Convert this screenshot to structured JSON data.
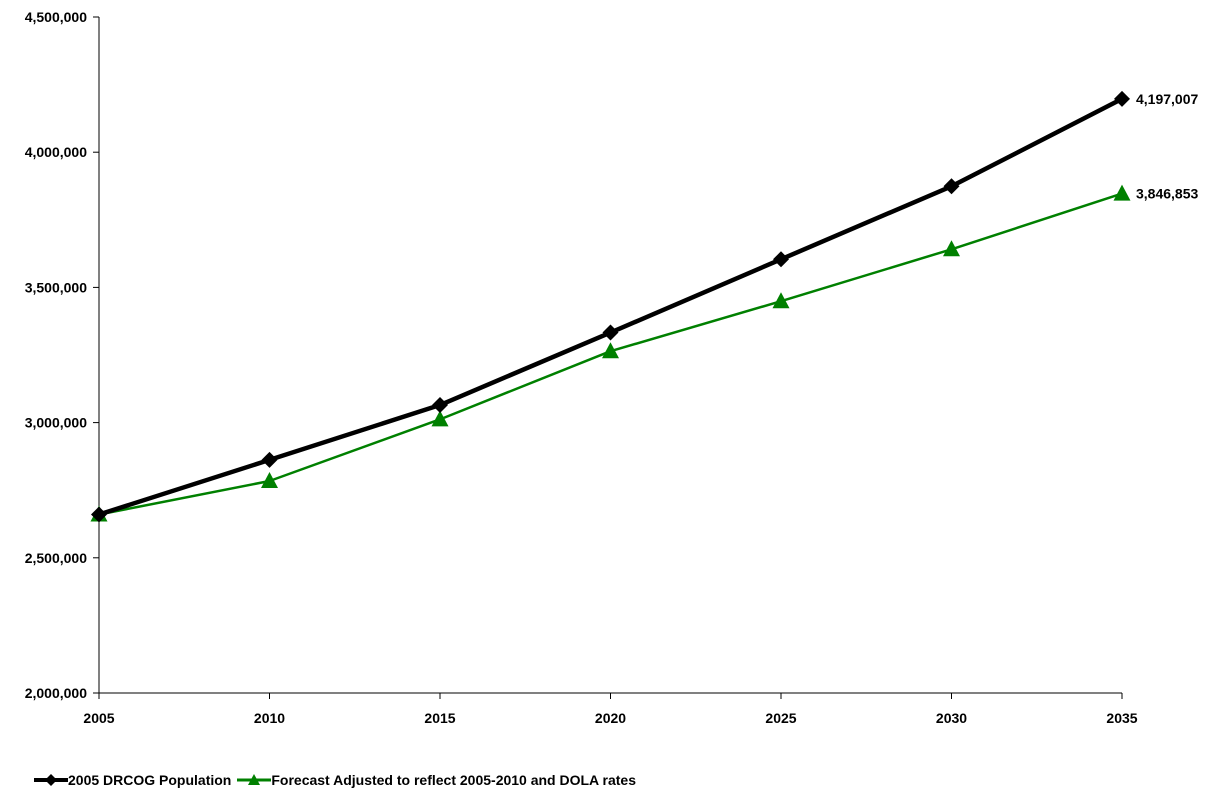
{
  "chart_data": {
    "type": "line",
    "title": "",
    "xlabel": "",
    "ylabel": "",
    "categories": [
      "2005",
      "2010",
      "2015",
      "2020",
      "2025",
      "2030",
      "2035"
    ],
    "ylim": [
      2000000,
      4500000
    ],
    "yticks": [
      2000000,
      2500000,
      3000000,
      3500000,
      4000000,
      4500000
    ],
    "ytick_labels": [
      "2,000,000",
      "2,500,000",
      "3,000,000",
      "3,500,000",
      "4,000,000",
      "4,500,000"
    ],
    "grid": false,
    "legend_position": "bottom",
    "series": [
      {
        "name": "2005 DRCOG Population",
        "color": "#000000",
        "marker": "diamond",
        "values": [
          2660000,
          2862000,
          3065000,
          3333000,
          3604000,
          3874000,
          4197007
        ],
        "end_label": "4,197,007"
      },
      {
        "name": "Forecast Adjusted to reflect 2005-2010 and DOLA rates",
        "color": "#008000",
        "marker": "triangle",
        "values": [
          2660000,
          2784000,
          3012000,
          3264000,
          3449000,
          3641000,
          3846853
        ],
        "end_label": "3,846,853"
      }
    ]
  }
}
